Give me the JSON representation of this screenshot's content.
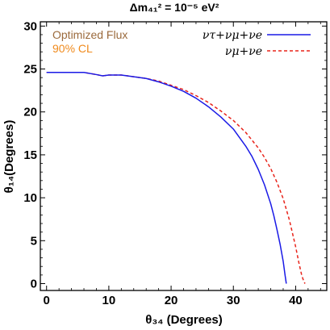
{
  "chart_data": {
    "type": "line",
    "title": "Δm₄₁² = 10⁻⁵ eV²",
    "xlabel": "θ₃₄ (Degrees)",
    "ylabel": "θ₁₄(Degrees)",
    "xlim": [
      -1,
      45
    ],
    "ylim": [
      -0.8,
      30.5
    ],
    "x_ticks": [
      0,
      10,
      20,
      30,
      40
    ],
    "y_ticks": [
      0,
      5,
      10,
      15,
      20,
      25,
      30
    ],
    "grid": false,
    "legend_position": "top-right",
    "annotations": [
      {
        "text": "Optimized Flux",
        "color": "#9b6a3c"
      },
      {
        "text": "90% CL",
        "color": "#f08a1c"
      }
    ],
    "series": [
      {
        "name": "ντ+νμ+νe",
        "color": "#1a1ae6",
        "style": "solid",
        "x": [
          0,
          2,
          4,
          6,
          8,
          9,
          10,
          12,
          14,
          16,
          18,
          20,
          22,
          24,
          26,
          28,
          30,
          32,
          33,
          34,
          35,
          36,
          36.5,
          37,
          37.5,
          38,
          38.3,
          38.5
        ],
        "y": [
          24.6,
          24.6,
          24.6,
          24.6,
          24.35,
          24.2,
          24.3,
          24.3,
          24.1,
          23.9,
          23.5,
          23.0,
          22.4,
          21.6,
          20.6,
          19.4,
          18.0,
          16.0,
          14.8,
          13.3,
          11.5,
          9.3,
          7.9,
          6.3,
          4.6,
          2.6,
          1.0,
          0
        ]
      },
      {
        "name": "νμ+νe",
        "color": "#e8231a",
        "style": "dashed",
        "x": [
          0,
          2,
          4,
          6,
          8,
          9,
          10,
          12,
          14,
          16,
          18,
          20,
          22,
          24,
          26,
          28,
          30,
          32,
          34,
          35,
          36,
          37,
          38,
          39,
          40,
          40.5,
          41,
          41.3,
          41.5
        ],
        "y": [
          24.6,
          24.6,
          24.6,
          24.6,
          24.35,
          24.2,
          24.3,
          24.3,
          24.1,
          23.9,
          23.6,
          23.1,
          22.6,
          21.9,
          21.1,
          20.1,
          19.0,
          17.6,
          15.8,
          14.7,
          13.4,
          11.8,
          9.9,
          7.4,
          4.3,
          2.5,
          0.9,
          0.3,
          0
        ]
      }
    ]
  }
}
